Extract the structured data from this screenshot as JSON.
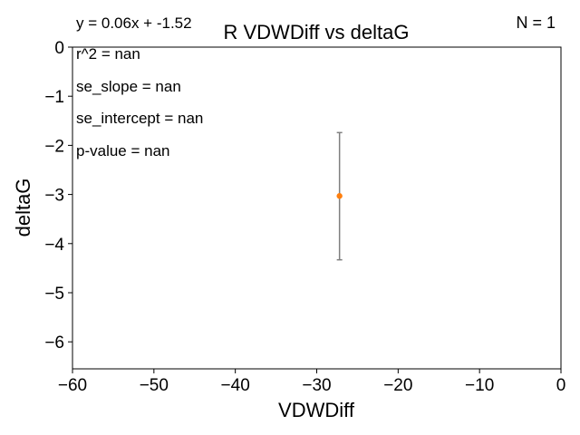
{
  "chart_data": {
    "type": "scatter",
    "title": "R VDWDiff vs deltaG",
    "xlabel": "VDWDiff",
    "ylabel": "deltaG",
    "xlim": [
      -60,
      0
    ],
    "ylim": [
      -6.55,
      0
    ],
    "xticks": [
      -60,
      -50,
      -40,
      -30,
      -20,
      -10,
      0
    ],
    "yticks": [
      0,
      -1,
      -2,
      -3,
      -4,
      -5,
      -6
    ],
    "xtick_labels": [
      "−60",
      "−50",
      "−40",
      "−30",
      "−20",
      "−10",
      "0"
    ],
    "ytick_labels": [
      "0",
      "−1",
      "−2",
      "−3",
      "−4",
      "−5",
      "−6"
    ],
    "points": [
      {
        "x": -27.2,
        "y": -3.03,
        "yerr_low": -4.33,
        "yerr_high": -1.74
      }
    ],
    "point_color": "#ff7f0e",
    "errorbar_color": "#7f7f7f",
    "grid": false,
    "annotations": {
      "equation": "y = 0.06x + -1.52",
      "r2": "r^2 = nan",
      "se_slope": "se_slope = nan",
      "se_intercept": "se_intercept = nan",
      "p_value": "p-value = nan",
      "n": "N = 1"
    }
  }
}
